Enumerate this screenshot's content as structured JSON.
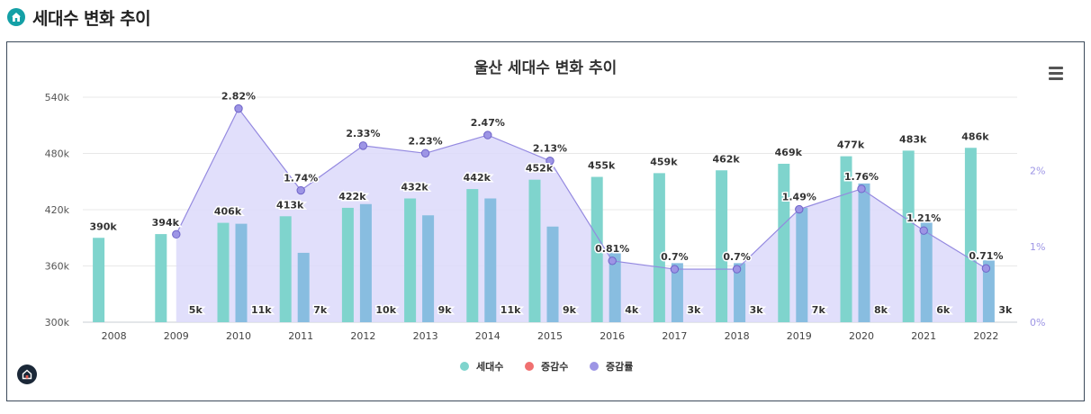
{
  "header": {
    "title": "세대수 변화 추이"
  },
  "colors": {
    "accent": "#14a0a6",
    "households": "#7fd4cd",
    "change_count": "#f07070",
    "change_rate": "#9d95e5",
    "change_bar": "#88bde0",
    "rate_area": "#dcd9fa",
    "rate_line": "#9489e0"
  },
  "chart_data": {
    "type": "bar+area",
    "title": "울산 세대수 변화 추이",
    "categories": [
      "2008",
      "2009",
      "2010",
      "2011",
      "2012",
      "2013",
      "2014",
      "2015",
      "2016",
      "2017",
      "2018",
      "2019",
      "2020",
      "2021",
      "2022"
    ],
    "y_left": {
      "ticks": [
        "300k",
        "360k",
        "420k",
        "480k",
        "540k"
      ],
      "tick_values": [
        300,
        360,
        420,
        480,
        540
      ],
      "range": [
        300,
        540
      ]
    },
    "y_right": {
      "ticks": [
        "0%",
        "1%",
        "2%"
      ],
      "tick_values": [
        0,
        1,
        2
      ],
      "range": [
        0,
        2.97
      ]
    },
    "series": [
      {
        "name": "세대수",
        "axis": "left",
        "values": [
          390,
          394,
          406,
          413,
          422,
          432,
          442,
          452,
          455,
          459,
          462,
          469,
          477,
          483,
          486
        ],
        "labels": [
          "390k",
          "394k",
          "406k",
          "413k",
          "422k",
          "432k",
          "442k",
          "452k",
          "455k",
          "459k",
          "462k",
          "469k",
          "477k",
          "483k",
          "486k"
        ]
      },
      {
        "name": "증감수",
        "axis": "left",
        "values": [
          null,
          5,
          11,
          7,
          10,
          9,
          11,
          9,
          4,
          3,
          3,
          7,
          8,
          6,
          3
        ],
        "labels": [
          "",
          "5k",
          "11k",
          "7k",
          "10k",
          "9k",
          "11k",
          "9k",
          "4k",
          "3k",
          "3k",
          "7k",
          "8k",
          "6k",
          "3k"
        ]
      },
      {
        "name": "증감률",
        "axis": "right",
        "values": [
          null,
          1.16,
          2.82,
          1.74,
          2.33,
          2.23,
          2.47,
          2.13,
          0.81,
          0.7,
          0.7,
          1.49,
          1.76,
          1.21,
          0.71
        ],
        "labels": [
          "",
          "",
          "2.82%",
          "1.74%",
          "2.33%",
          "2.23%",
          "2.47%",
          "2.13%",
          "0.81%",
          "0.7%",
          "0.7%",
          "1.49%",
          "1.76%",
          "1.21%",
          "0.71%"
        ]
      }
    ],
    "change_bar_tops": [
      null,
      300,
      405,
      374,
      426,
      414,
      432,
      402,
      375,
      363,
      363,
      422,
      448,
      408,
      366
    ],
    "legend": [
      "세대수",
      "증감수",
      "증감률"
    ],
    "grid": true
  }
}
